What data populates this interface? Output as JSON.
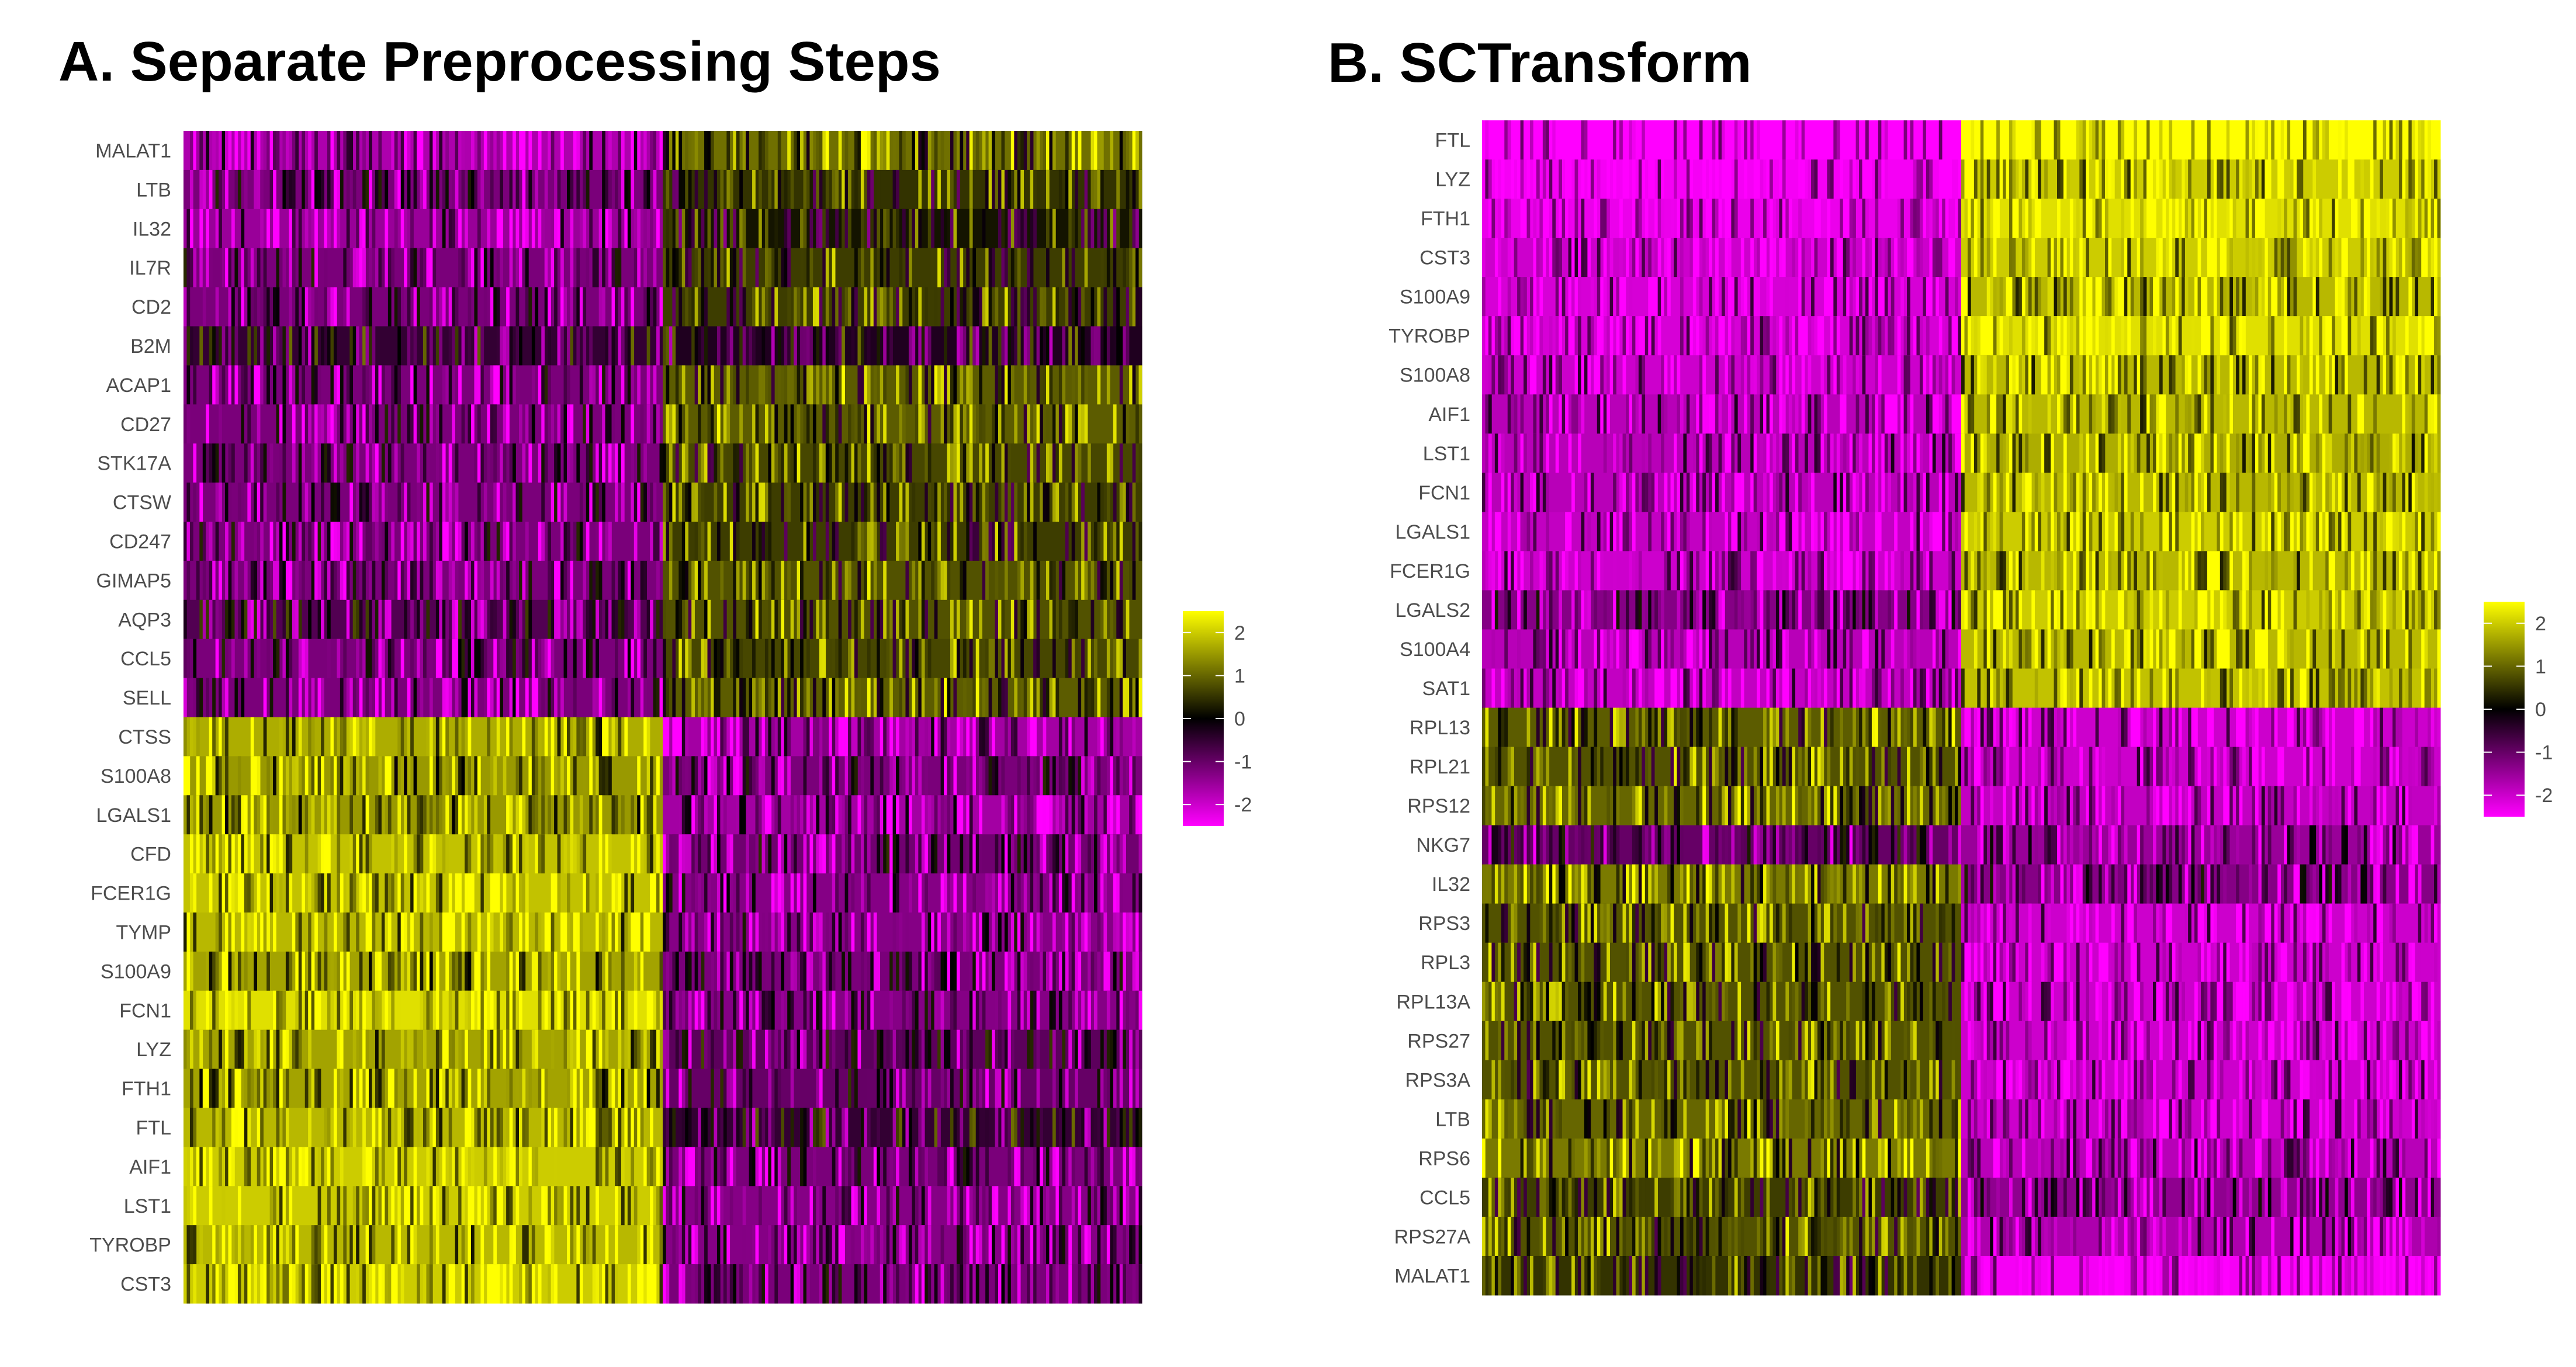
{
  "panels": [
    {
      "title": "A. Separate Preprocessing Steps"
    },
    {
      "title": "B. SCTransform"
    }
  ],
  "colors": {
    "low": "#ff00ff",
    "mid": "#000000",
    "high": "#ffff00"
  },
  "chart_data": [
    {
      "type": "heatmap",
      "title": "A. Separate Preprocessing Steps",
      "xlabel": "",
      "ylabel": "",
      "color_scale": {
        "colors": [
          "#ff00ff",
          "#000000",
          "#ffff00"
        ],
        "range": [
          -2.5,
          2.5
        ],
        "legend_ticks": [
          2,
          1,
          0,
          -1,
          -2
        ]
      },
      "column_groups": [
        {
          "fraction": 0.5
        },
        {
          "fraction": 0.5
        }
      ],
      "rows": [
        "MALAT1",
        "LTB",
        "IL32",
        "IL7R",
        "CD2",
        "B2M",
        "ACAP1",
        "CD27",
        "STK17A",
        "CTSW",
        "CD247",
        "GIMAP5",
        "AQP3",
        "CCL5",
        "SELL",
        "CTSS",
        "S100A8",
        "LGALS1",
        "CFD",
        "FCER1G",
        "TYMP",
        "S100A9",
        "FCN1",
        "LYZ",
        "FTH1",
        "FTL",
        "AIF1",
        "LST1",
        "TYROBP",
        "CST3"
      ],
      "group_means": [
        [
          -1.7,
          1.1
        ],
        [
          -1.2,
          0.5
        ],
        [
          -1.5,
          0.2
        ],
        [
          -1.2,
          0.6
        ],
        [
          -1.2,
          0.6
        ],
        [
          -0.5,
          -0.3
        ],
        [
          -1.2,
          0.9
        ],
        [
          -1.2,
          0.9
        ],
        [
          -1.2,
          0.7
        ],
        [
          -1.2,
          0.6
        ],
        [
          -1.2,
          0.6
        ],
        [
          -1.2,
          0.8
        ],
        [
          -0.8,
          0.8
        ],
        [
          -1.2,
          0.7
        ],
        [
          -1.2,
          0.9
        ],
        [
          1.7,
          -1.6
        ],
        [
          1.5,
          -1.2
        ],
        [
          1.5,
          -1.6
        ],
        [
          1.9,
          -1.1
        ],
        [
          1.9,
          -1.3
        ],
        [
          1.8,
          -1.3
        ],
        [
          1.6,
          -1.2
        ],
        [
          2.2,
          -1.3
        ],
        [
          1.6,
          -0.9
        ],
        [
          1.6,
          -1.0
        ],
        [
          1.8,
          -0.5
        ],
        [
          2.0,
          -1.2
        ],
        [
          2.0,
          -1.3
        ],
        [
          1.8,
          -1.3
        ],
        [
          2.0,
          -1.2
        ]
      ]
    },
    {
      "type": "heatmap",
      "title": "B. SCTransform",
      "xlabel": "",
      "ylabel": "",
      "color_scale": {
        "colors": [
          "#ff00ff",
          "#000000",
          "#ffff00"
        ],
        "range": [
          -2.5,
          2.5
        ],
        "legend_ticks": [
          2,
          1,
          0,
          -1,
          -2
        ]
      },
      "column_groups": [
        {
          "fraction": 0.5
        },
        {
          "fraction": 0.5
        }
      ],
      "rows": [
        "FTL",
        "LYZ",
        "FTH1",
        "CST3",
        "S100A9",
        "TYROBP",
        "S100A8",
        "AIF1",
        "LST1",
        "FCN1",
        "LGALS1",
        "FCER1G",
        "LGALS2",
        "S100A4",
        "SAT1",
        "RPL13",
        "RPL21",
        "RPS12",
        "NKG7",
        "IL32",
        "RPS3",
        "RPL3",
        "RPL13A",
        "RPS27",
        "RPS3A",
        "LTB",
        "RPS6",
        "CCL5",
        "RPS27A",
        "MALAT1"
      ],
      "group_means": [
        [
          -2.5,
          2.5
        ],
        [
          -2.4,
          2.0
        ],
        [
          -2.3,
          2.2
        ],
        [
          -2.0,
          2.0
        ],
        [
          -2.1,
          1.8
        ],
        [
          -2.1,
          2.2
        ],
        [
          -2.0,
          1.8
        ],
        [
          -1.8,
          1.8
        ],
        [
          -1.8,
          1.7
        ],
        [
          -1.8,
          1.8
        ],
        [
          -1.9,
          2.0
        ],
        [
          -2.0,
          1.8
        ],
        [
          -1.3,
          2.0
        ],
        [
          -1.8,
          1.8
        ],
        [
          -1.9,
          1.9
        ],
        [
          0.9,
          -2.0
        ],
        [
          0.8,
          -2.0
        ],
        [
          1.0,
          -1.9
        ],
        [
          -1.0,
          -1.5
        ],
        [
          1.2,
          -1.3
        ],
        [
          0.8,
          -2.0
        ],
        [
          0.8,
          -2.0
        ],
        [
          0.8,
          -2.0
        ],
        [
          0.8,
          -2.0
        ],
        [
          0.8,
          -2.0
        ],
        [
          1.0,
          -2.0
        ],
        [
          1.2,
          -1.8
        ],
        [
          0.6,
          -1.4
        ],
        [
          0.8,
          -1.7
        ],
        [
          0.5,
          -2.4
        ]
      ]
    }
  ]
}
